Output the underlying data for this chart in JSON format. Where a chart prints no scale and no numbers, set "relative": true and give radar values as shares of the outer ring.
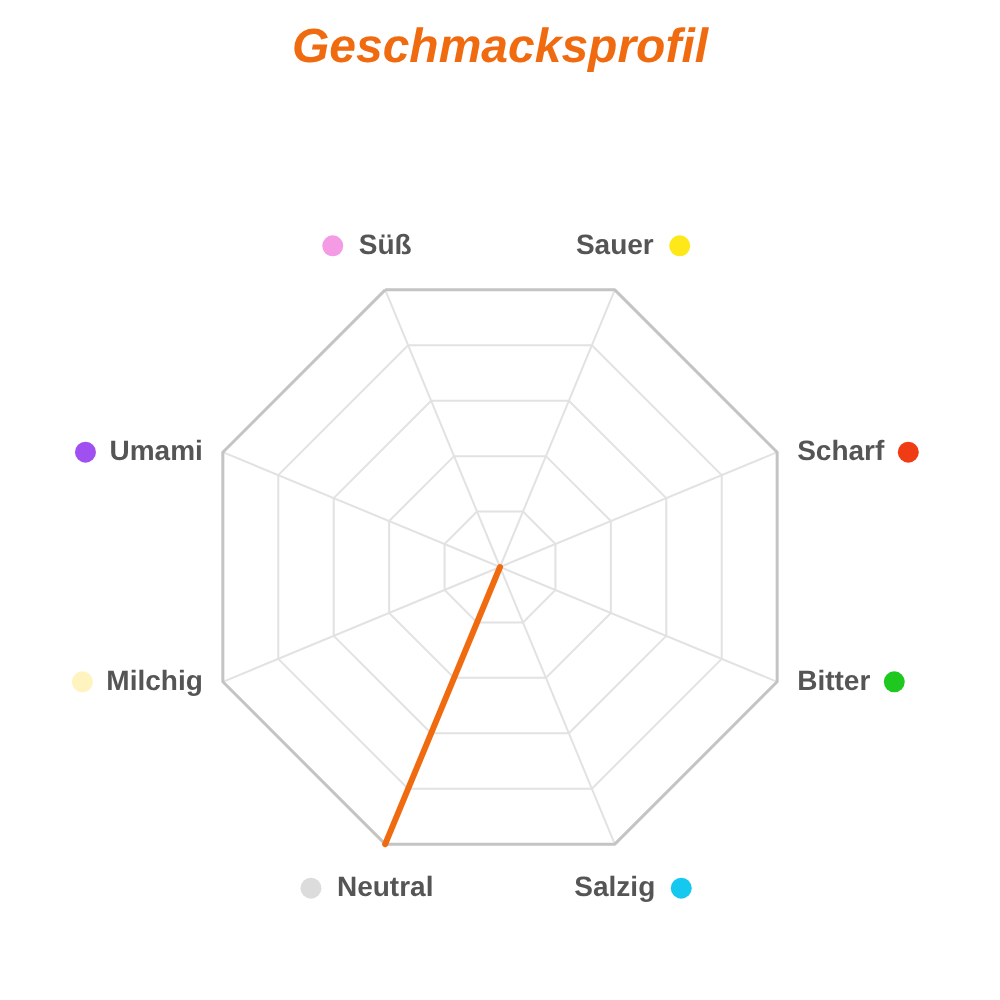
{
  "chart_data": {
    "type": "radar",
    "title": "Geschmacksprofil",
    "categories": [
      "Süß",
      "Sauer",
      "Scharf",
      "Bitter",
      "Salzig",
      "Neutral",
      "Milchig",
      "Umami"
    ],
    "colors": [
      "#f59be6",
      "#ffe81a",
      "#f03c14",
      "#1ec81e",
      "#14c8f0",
      "#dcdcdc",
      "#fff3c0",
      "#a050f0"
    ],
    "relative": true,
    "grid": true,
    "series": [
      {
        "color": "#f06a0f",
        "values": [
          0,
          0,
          0,
          0,
          0,
          1,
          0,
          0
        ]
      }
    ]
  }
}
